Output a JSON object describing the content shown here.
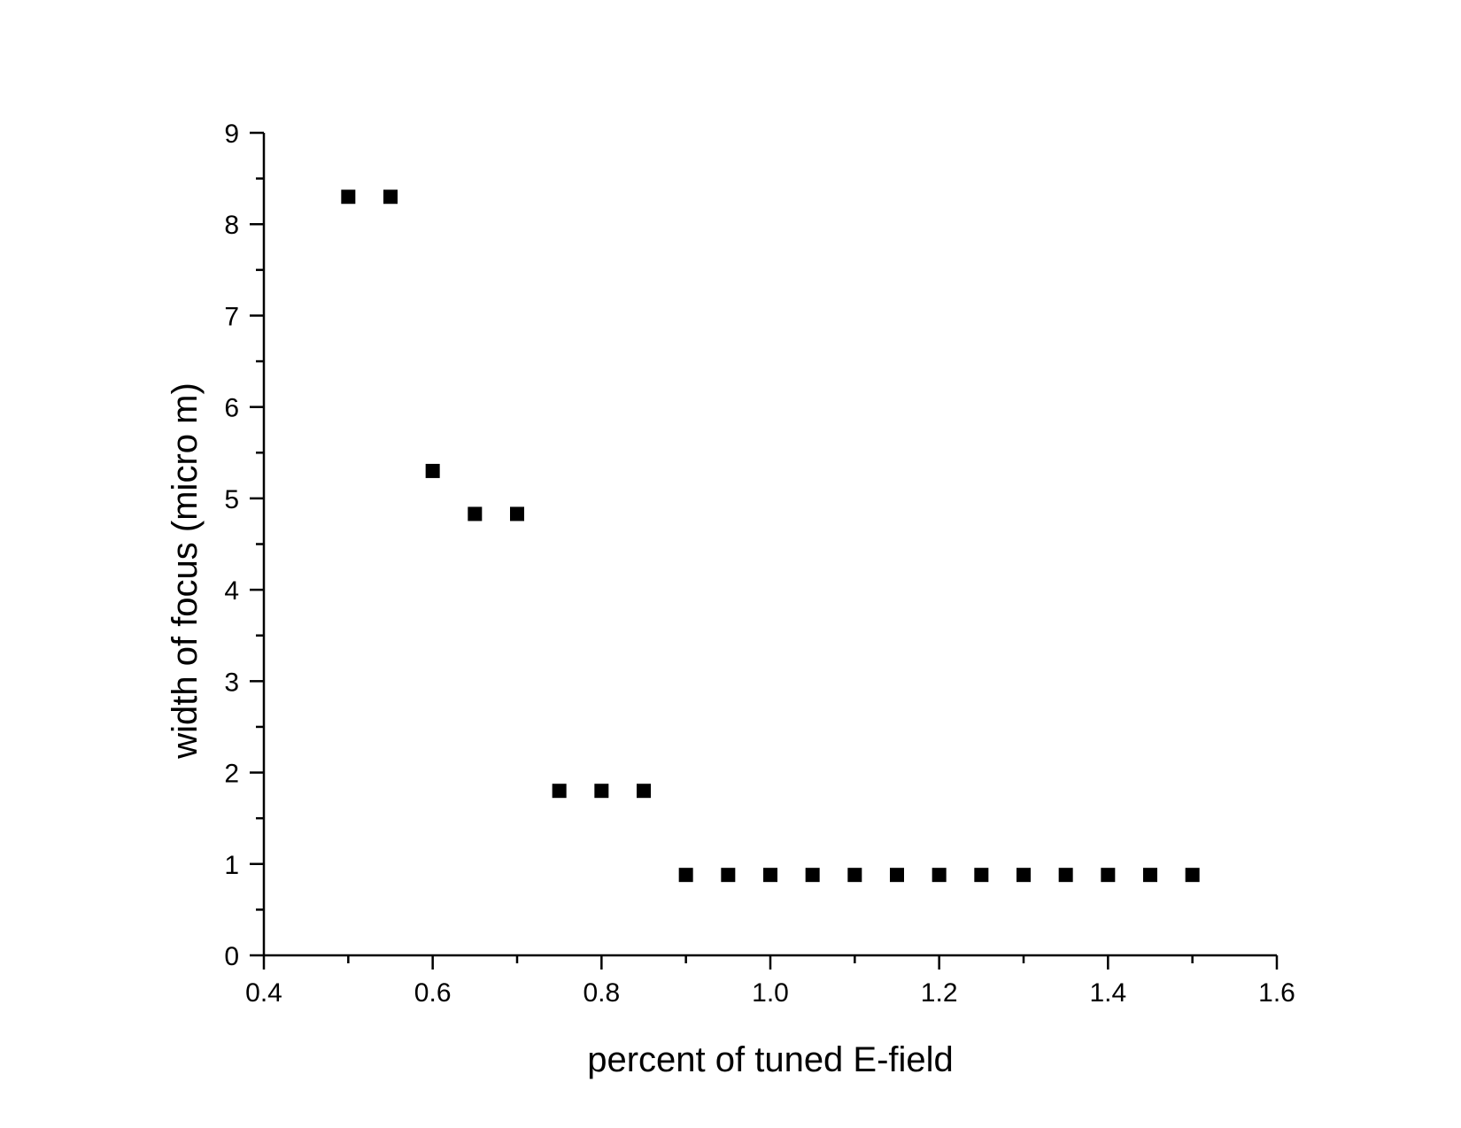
{
  "chart_data": {
    "type": "scatter",
    "title": "",
    "xlabel": "percent of tuned E-field",
    "ylabel": "width of focus (micro m)",
    "xlim": [
      0.4,
      1.6
    ],
    "ylim": [
      0,
      9
    ],
    "x_major_ticks": [
      0.4,
      0.6,
      0.8,
      1.0,
      1.2,
      1.4,
      1.6
    ],
    "x_tick_labels": [
      "0.4",
      "0.6",
      "0.8",
      "1.0",
      "1.2",
      "1.4",
      "1.6"
    ],
    "x_minor_step": 0.1,
    "y_major_ticks": [
      0,
      1,
      2,
      3,
      4,
      5,
      6,
      7,
      8,
      9
    ],
    "y_tick_labels": [
      "0",
      "1",
      "2",
      "3",
      "4",
      "5",
      "6",
      "7",
      "8",
      "9"
    ],
    "y_minor_step": 0.5,
    "grid": false,
    "marker": "square",
    "marker_color": "#000000",
    "series": [
      {
        "x": [
          0.5,
          0.55,
          0.6,
          0.65,
          0.7,
          0.75,
          0.8,
          0.85,
          0.9,
          0.95,
          1.0,
          1.05,
          1.1,
          1.15,
          1.2,
          1.25,
          1.3,
          1.35,
          1.4,
          1.45,
          1.5
        ],
        "y": [
          8.3,
          8.3,
          5.3,
          4.83,
          4.83,
          1.8,
          1.8,
          1.8,
          0.88,
          0.88,
          0.88,
          0.88,
          0.88,
          0.88,
          0.88,
          0.88,
          0.88,
          0.88,
          0.88,
          0.88,
          0.88
        ]
      }
    ]
  }
}
